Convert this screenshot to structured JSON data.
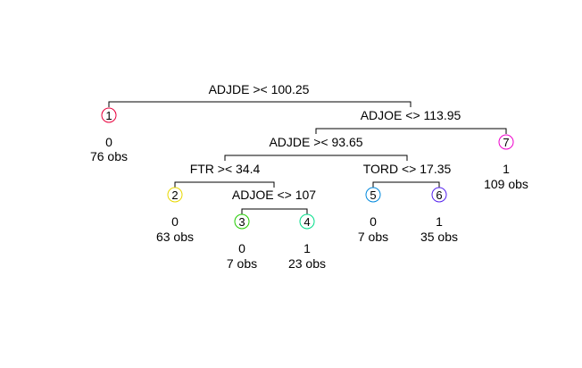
{
  "splits": [
    {
      "id": "s1",
      "label": "ADJDE >< 100.25"
    },
    {
      "id": "s2",
      "label": "ADJOE <> 113.95"
    },
    {
      "id": "s3",
      "label": "ADJDE >< 93.65"
    },
    {
      "id": "s4",
      "label": "FTR >< 34.4"
    },
    {
      "id": "s5",
      "label": "TORD <> 17.35"
    },
    {
      "id": "s6",
      "label": "ADJOE <> 107"
    }
  ],
  "leaves": [
    {
      "id": "1",
      "class": "0",
      "obs": "76 obs",
      "color": "#e8003c"
    },
    {
      "id": "2",
      "class": "0",
      "obs": "63 obs",
      "color": "#e8d800"
    },
    {
      "id": "3",
      "class": "0",
      "obs": "7 obs",
      "color": "#22cc00"
    },
    {
      "id": "4",
      "class": "1",
      "obs": "23 obs",
      "color": "#00dd88"
    },
    {
      "id": "5",
      "class": "0",
      "obs": "7 obs",
      "color": "#0088dd"
    },
    {
      "id": "6",
      "class": "1",
      "obs": "35 obs",
      "color": "#5522ee"
    },
    {
      "id": "7",
      "class": "1",
      "obs": "109 obs",
      "color": "#ee00cc"
    }
  ]
}
